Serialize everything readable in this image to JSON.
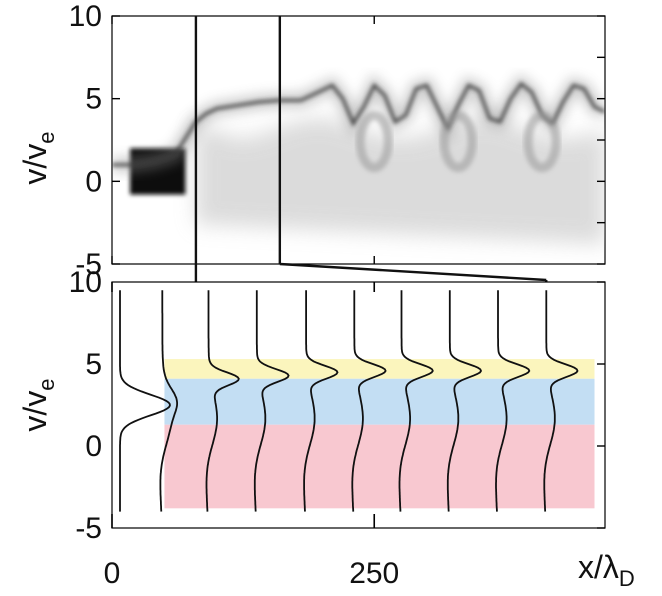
{
  "chart_data": [
    {
      "type": "heatmap",
      "panel": "top",
      "ylabel_main": "v/v",
      "ylabel_sub": "e",
      "ylim": [
        -5,
        10
      ],
      "xlim": [
        0,
        470
      ],
      "y_ticks": [
        {
          "value": 10,
          "label": "10"
        },
        {
          "value": 5,
          "label": "5"
        },
        {
          "value": 0,
          "label": "0"
        },
        {
          "value": -5,
          "label": "-5"
        }
      ],
      "beam_ridge": {
        "x": [
          0,
          20,
          40,
          60,
          70,
          80,
          90,
          100,
          120,
          140,
          160,
          180,
          190,
          200,
          210,
          220,
          230,
          240,
          250,
          260,
          270,
          280,
          290,
          300,
          310,
          320,
          330,
          340,
          350,
          360,
          370,
          380,
          390,
          400,
          410,
          420,
          430,
          440,
          450,
          460,
          470
        ],
        "v": [
          1.0,
          1.0,
          1.2,
          1.6,
          2.6,
          3.6,
          4.1,
          4.4,
          4.6,
          4.8,
          4.9,
          4.9,
          5.2,
          5.5,
          5.8,
          5.0,
          3.5,
          4.5,
          5.8,
          5.2,
          3.6,
          4.0,
          5.6,
          5.8,
          4.5,
          3.2,
          4.6,
          5.8,
          5.5,
          3.8,
          3.6,
          5.0,
          5.9,
          5.4,
          4.0,
          3.5,
          4.8,
          5.8,
          5.6,
          4.5,
          4.2
        ]
      },
      "cut_markers_x": [
        80,
        160
      ]
    },
    {
      "type": "line",
      "panel": "bottom",
      "ylabel_main": "v/v",
      "ylabel_sub": "e",
      "xlabel_main": "x/λ",
      "xlabel_sub": "D",
      "ylim": [
        -5,
        10
      ],
      "xlim": [
        0,
        470
      ],
      "x_ticks": [
        {
          "value": 0,
          "label": "0"
        },
        {
          "value": 250,
          "label": "250"
        }
      ],
      "y_ticks": [
        {
          "value": 10,
          "label": "10"
        },
        {
          "value": 5,
          "label": "5"
        },
        {
          "value": 0,
          "label": "0"
        },
        {
          "value": -5,
          "label": "-5"
        }
      ],
      "bands": [
        {
          "v0": 4.1,
          "v1": 5.3,
          "color": "#fbf5bd"
        },
        {
          "v0": 1.3,
          "v1": 4.1,
          "color": "#c3def3"
        },
        {
          "v0": -3.8,
          "v1": 1.3,
          "color": "#f8c8d0"
        }
      ],
      "bands_x": [
        50,
        460
      ],
      "distribution_profiles": [
        {
          "x0": 0,
          "peak_v": 2.5,
          "peak_width": 0.9,
          "amp": 50,
          "v_range": [
            -4,
            9.5
          ],
          "core": false
        },
        {
          "x0": 48,
          "peak_v": 2.8,
          "peak_width": 1.0,
          "amp": 8,
          "v_range": [
            -4,
            9.5
          ],
          "core": true
        },
        {
          "x0": 92,
          "peak_v": 4.1,
          "peak_width": 0.55,
          "amp": 28,
          "v_range": [
            -4,
            9.5
          ],
          "core": true
        },
        {
          "x0": 138,
          "peak_v": 4.3,
          "peak_width": 0.55,
          "amp": 30,
          "v_range": [
            -4,
            9.5
          ],
          "core": true
        },
        {
          "x0": 185,
          "peak_v": 4.5,
          "peak_width": 0.55,
          "amp": 30,
          "v_range": [
            -4,
            9.5
          ],
          "core": true
        },
        {
          "x0": 231,
          "peak_v": 4.6,
          "peak_width": 0.55,
          "amp": 30,
          "v_range": [
            -4,
            9.5
          ],
          "core": true
        },
        {
          "x0": 276,
          "peak_v": 4.6,
          "peak_width": 0.55,
          "amp": 30,
          "v_range": [
            -4,
            9.5
          ],
          "core": true
        },
        {
          "x0": 322,
          "peak_v": 4.6,
          "peak_width": 0.55,
          "amp": 30,
          "v_range": [
            -4,
            9.5
          ],
          "core": true
        },
        {
          "x0": 368,
          "peak_v": 4.6,
          "peak_width": 0.55,
          "amp": 30,
          "v_range": [
            -4,
            9.5
          ],
          "core": true
        },
        {
          "x0": 414,
          "peak_v": 4.6,
          "peak_width": 0.55,
          "amp": 30,
          "v_range": [
            -4,
            9.5
          ],
          "core": true
        }
      ]
    }
  ]
}
